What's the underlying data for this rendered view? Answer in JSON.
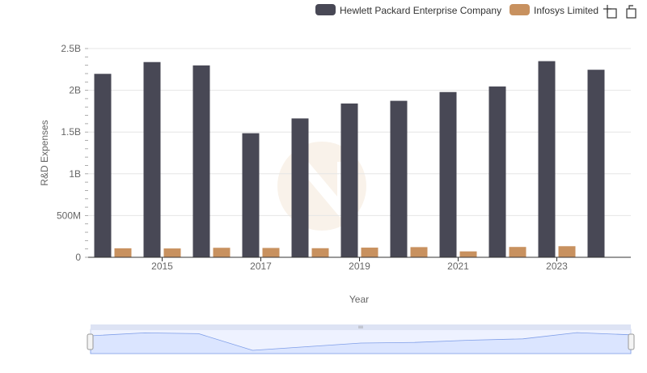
{
  "colors": {
    "hpe": "#484855",
    "infosys": "#c8915f",
    "grid": "#e6e6e6",
    "axis": "#333333",
    "navigator_fill": "#dbe5ff",
    "navigator_line": "#7f9ee8",
    "watermark": "#f3e6d6"
  },
  "toolbar": {
    "zoom_icon": "crosshair-zoom-icon",
    "reset_icon": "restore-icon"
  },
  "chart_data": {
    "type": "bar",
    "xlabel": "Year",
    "ylabel": "R&D Expenses",
    "ylim": [
      0,
      2500000000
    ],
    "y_ticks": [
      {
        "value": 0,
        "label": "0"
      },
      {
        "value": 500000000,
        "label": "500M"
      },
      {
        "value": 1000000000,
        "label": "1B"
      },
      {
        "value": 1500000000,
        "label": "1.5B"
      },
      {
        "value": 2000000000,
        "label": "2B"
      },
      {
        "value": 2500000000,
        "label": "2.5B"
      }
    ],
    "x": [
      2014,
      2015,
      2016,
      2017,
      2018,
      2019,
      2020,
      2021,
      2022,
      2023,
      2024
    ],
    "x_tick_labels": [
      {
        "value": 2015,
        "label": "2015"
      },
      {
        "value": 2017,
        "label": "2017"
      },
      {
        "value": 2019,
        "label": "2019"
      },
      {
        "value": 2021,
        "label": "2021"
      },
      {
        "value": 2023,
        "label": "2023"
      }
    ],
    "grid": true,
    "legend_position": "top-right",
    "series": [
      {
        "name": "Hewlett Packard Enterprise Company",
        "color_key": "hpe",
        "values": [
          2197000000,
          2338000000,
          2298000000,
          1486000000,
          1663000000,
          1842000000,
          1874000000,
          1979000000,
          2046000000,
          2349000000,
          2246000000
        ]
      },
      {
        "name": "Infosys Limited",
        "color_key": "infosys",
        "values": [
          108000000,
          106000000,
          114000000,
          112000000,
          109000000,
          116000000,
          122000000,
          71000000,
          124000000,
          133000000,
          null
        ]
      }
    ]
  }
}
